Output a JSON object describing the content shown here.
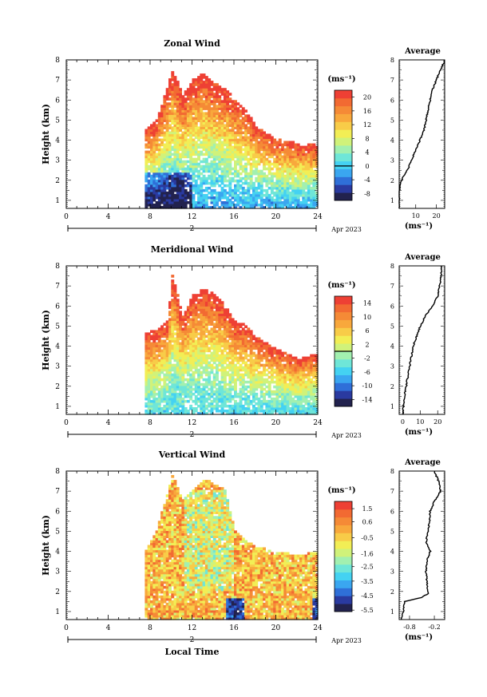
{
  "figure": {
    "date_label": "Apr 2023",
    "xlabel_bottom": "Local Time",
    "day_label": "2"
  },
  "colormap": [
    "#22224e",
    "#2a3aa0",
    "#2f6fd8",
    "#3aa6f0",
    "#44d2f2",
    "#6fe6d8",
    "#a2f0b0",
    "#d0f27a",
    "#f2ee55",
    "#f8cc48",
    "#f8a83c",
    "#f58a36",
    "#f26a32",
    "#ee4034"
  ],
  "chart_data": [
    {
      "id": "zonal",
      "type": "heatmap",
      "title": "Zonal Wind",
      "ylabel": "Height (km)",
      "xlim": [
        0,
        24
      ],
      "ylim": [
        0.6,
        8
      ],
      "xticks": [
        0,
        4,
        8,
        12,
        16,
        20,
        24
      ],
      "yticks": [
        1,
        2,
        3,
        4,
        5,
        6,
        7,
        8
      ],
      "colorbar": {
        "unit": "(ms⁻¹)",
        "range": [
          -10,
          22
        ],
        "ticks": [
          20,
          16,
          12,
          8,
          4,
          0,
          -4,
          -8
        ],
        "contour_at": 0
      },
      "valid_time_range": [
        7.5,
        24
      ],
      "top_height_profile": [
        [
          7.5,
          4.5
        ],
        [
          8.5,
          5.0
        ],
        [
          9.5,
          6.5
        ],
        [
          10.0,
          7.5
        ],
        [
          11.0,
          6.2
        ],
        [
          12.0,
          7.0
        ],
        [
          13.0,
          7.3
        ],
        [
          14.0,
          6.8
        ],
        [
          15.0,
          6.5
        ],
        [
          16.0,
          6.0
        ],
        [
          17.0,
          5.5
        ],
        [
          18.0,
          4.6
        ],
        [
          20.0,
          4.0
        ],
        [
          22.0,
          3.8
        ],
        [
          24.0,
          3.7
        ]
      ],
      "average_profile": {
        "title": "Average",
        "xlabel": "(ms⁻¹)",
        "xlim": [
          2,
          24
        ],
        "xticks": [
          10,
          20
        ],
        "height": [
          0.6,
          1.5,
          2.0,
          2.5,
          3.0,
          3.5,
          4.0,
          4.5,
          5.0,
          5.5,
          6.0,
          6.5,
          7.0,
          7.5,
          8.0
        ],
        "value": [
          2,
          2,
          3,
          6,
          8,
          10,
          12,
          14,
          15,
          16,
          17,
          18,
          20,
          22,
          24
        ]
      }
    },
    {
      "id": "meridional",
      "type": "heatmap",
      "title": "Meridional Wind",
      "ylabel": "Height (km)",
      "xlim": [
        0,
        24
      ],
      "ylim": [
        0.6,
        8
      ],
      "xticks": [
        0,
        4,
        8,
        12,
        16,
        20,
        24
      ],
      "yticks": [
        1,
        2,
        3,
        4,
        5,
        6,
        7,
        8
      ],
      "colorbar": {
        "unit": "(ms⁻¹)",
        "range": [
          -16,
          16
        ],
        "ticks": [
          14,
          10,
          6,
          2,
          -2,
          -6,
          -10,
          -14
        ],
        "contour_at": 0
      },
      "valid_time_range": [
        7.5,
        24
      ],
      "top_height_profile": [
        [
          7.5,
          4.6
        ],
        [
          8.5,
          4.8
        ],
        [
          9.5,
          5.2
        ],
        [
          10.0,
          7.5
        ],
        [
          11.0,
          5.5
        ],
        [
          12.0,
          6.5
        ],
        [
          13.0,
          6.8
        ],
        [
          14.0,
          6.6
        ],
        [
          15.0,
          6.0
        ],
        [
          16.0,
          5.2
        ],
        [
          17.0,
          5.0
        ],
        [
          18.0,
          4.4
        ],
        [
          20.0,
          3.8
        ],
        [
          22.0,
          3.3
        ],
        [
          24.0,
          3.6
        ]
      ],
      "average_profile": {
        "title": "Average",
        "xlabel": "(ms⁻¹)",
        "xlim": [
          -2,
          24
        ],
        "xticks": [
          0,
          10,
          20
        ],
        "height": [
          0.6,
          1.5,
          2.0,
          2.5,
          3.0,
          3.5,
          4.0,
          4.5,
          5.0,
          5.5,
          6.0,
          6.5,
          7.0,
          7.5,
          8.0
        ],
        "value": [
          0,
          1,
          2,
          3,
          4,
          5,
          6,
          8,
          10,
          13,
          17,
          20,
          21,
          22,
          22
        ]
      }
    },
    {
      "id": "vertical",
      "type": "heatmap",
      "title": "Vertical Wind",
      "ylabel": "Height (km)",
      "xlabel": "Local Time",
      "xlim": [
        0,
        24
      ],
      "ylim": [
        0.6,
        8
      ],
      "xticks": [
        0,
        4,
        8,
        12,
        16,
        20,
        24
      ],
      "yticks": [
        1,
        2,
        3,
        4,
        5,
        6,
        7,
        8
      ],
      "colorbar": {
        "unit": "(ms⁻¹)",
        "range": [
          -5.6,
          2.0
        ],
        "ticks": [
          1.5,
          0.6,
          -0.5,
          -1.6,
          -2.5,
          -3.5,
          -4.5,
          -5.5
        ]
      },
      "valid_time_range": [
        7.5,
        24
      ],
      "top_height_profile": [
        [
          7.5,
          4.0
        ],
        [
          8.5,
          5.0
        ],
        [
          9.5,
          6.8
        ],
        [
          10.0,
          7.8
        ],
        [
          11.0,
          6.5
        ],
        [
          12.0,
          7.0
        ],
        [
          13.0,
          7.5
        ],
        [
          14.0,
          7.4
        ],
        [
          15.0,
          7.0
        ],
        [
          16.0,
          5.0
        ],
        [
          17.0,
          4.5
        ],
        [
          18.0,
          4.2
        ],
        [
          20.0,
          3.9
        ],
        [
          22.0,
          3.8
        ],
        [
          24.0,
          3.9
        ]
      ],
      "average_profile": {
        "title": "Average",
        "xlabel": "(ms⁻¹)",
        "xlim": [
          -1.05,
          0.05
        ],
        "xticks": [
          -0.8,
          -0.2
        ],
        "xtick_labels": [
          "-0.8",
          "-0.2"
        ],
        "height": [
          0.6,
          1.0,
          1.5,
          1.7,
          1.9,
          2.5,
          3.0,
          3.5,
          4.0,
          4.5,
          5.0,
          5.5,
          6.0,
          6.5,
          7.0,
          7.5,
          8.0
        ],
        "value": [
          -1.0,
          -0.95,
          -0.92,
          -0.5,
          -0.35,
          -0.38,
          -0.4,
          -0.38,
          -0.3,
          -0.4,
          -0.35,
          -0.32,
          -0.3,
          -0.2,
          -0.05,
          -0.1,
          -0.2
        ]
      }
    }
  ]
}
